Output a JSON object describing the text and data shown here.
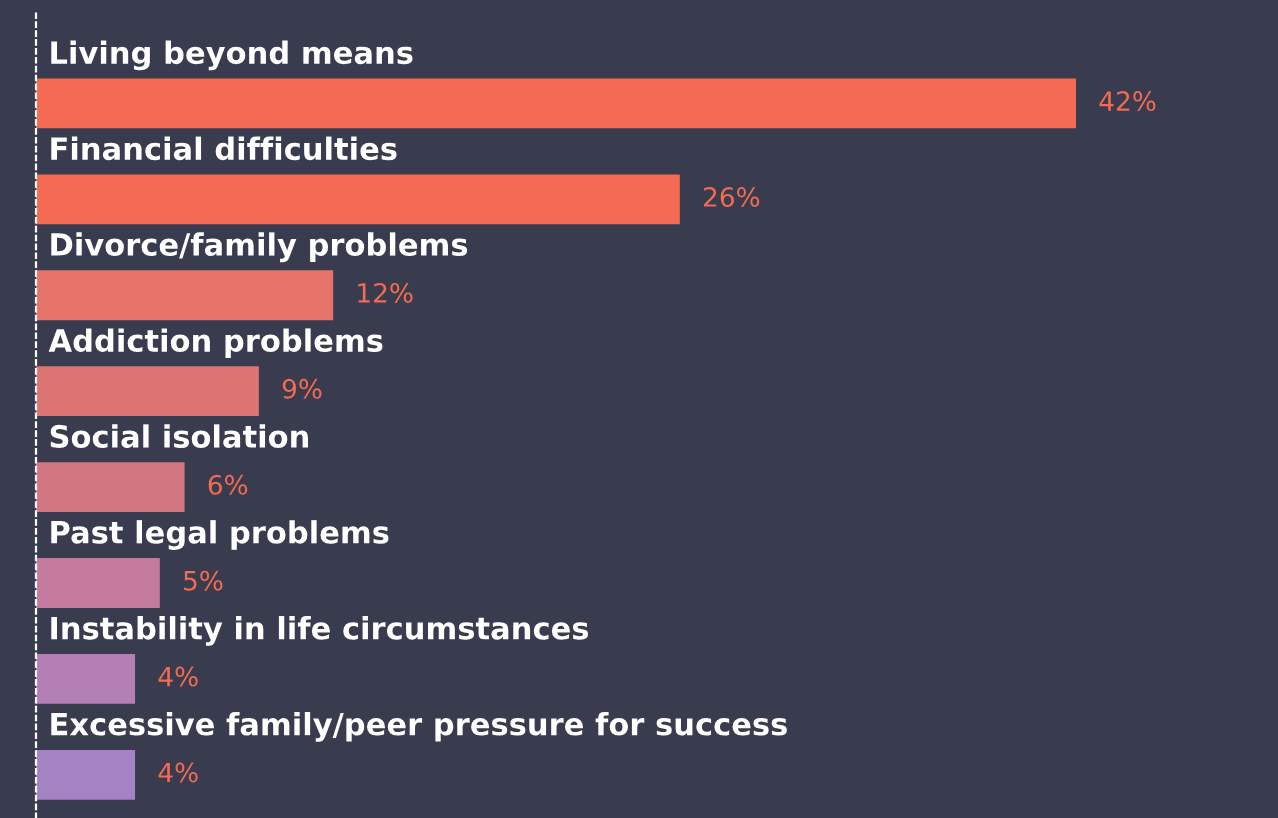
{
  "chart_data": {
    "type": "bar",
    "orientation": "horizontal",
    "tick_labels": false,
    "grid": false,
    "legend": false,
    "categories": [
      "Living beyond means",
      "Financial difficulties",
      "Divorce/family problems",
      "Addiction problems",
      "Social isolation",
      "Past legal problems",
      "Instability in life circumstances",
      "Excessive family/peer pressure for success"
    ],
    "values": [
      42,
      26,
      12,
      9,
      6,
      5,
      4,
      4
    ],
    "value_labels": [
      "42%",
      "26%",
      "12%",
      "9%",
      "6%",
      "5%",
      "4%",
      "4%"
    ],
    "colors": [
      "#f46a52",
      "#f46a52",
      "#e6736a",
      "#dc7474",
      "#d27681",
      "#c47a9c",
      "#b37fb4",
      "#a582c4"
    ]
  }
}
